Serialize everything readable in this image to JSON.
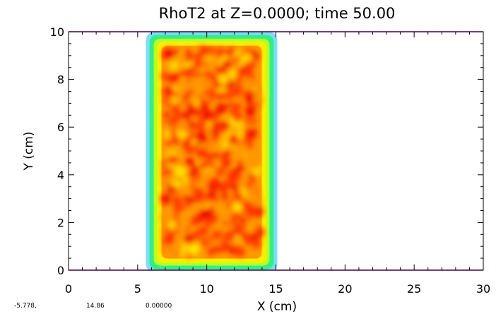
{
  "chart_data": {
    "type": "heatmap",
    "title": "RhoT2 at Z=0.0000; time 50.00",
    "xlabel": "X (cm)",
    "ylabel": "Y (cm)",
    "xlim": [
      0,
      30
    ],
    "ylim": [
      0,
      10
    ],
    "xticks": [
      0,
      5,
      10,
      15,
      20,
      25,
      30
    ],
    "xtick_labels": [
      "0",
      "5",
      "10",
      "15",
      "20",
      "25",
      "30"
    ],
    "yticks": [
      0,
      2,
      4,
      6,
      8,
      10
    ],
    "ytick_labels": [
      "0",
      "2",
      "4",
      "6",
      "8",
      "10"
    ],
    "region": {
      "x": [
        5.6,
        15.1
      ],
      "y": [
        -0.1,
        10.0
      ]
    },
    "boundary_lines_y": [
      0,
      10
    ],
    "colors": {
      "boundary": "#cc00cc",
      "scale": [
        "#7fdcff",
        "#33ee88",
        "#bbff22",
        "#ffee00",
        "#ff9900",
        "#ff3300",
        "#ee0000"
      ]
    }
  },
  "status": {
    "cursor_x": "-5.778,",
    "cursor_y": "14.86",
    "value": "0.00000"
  }
}
